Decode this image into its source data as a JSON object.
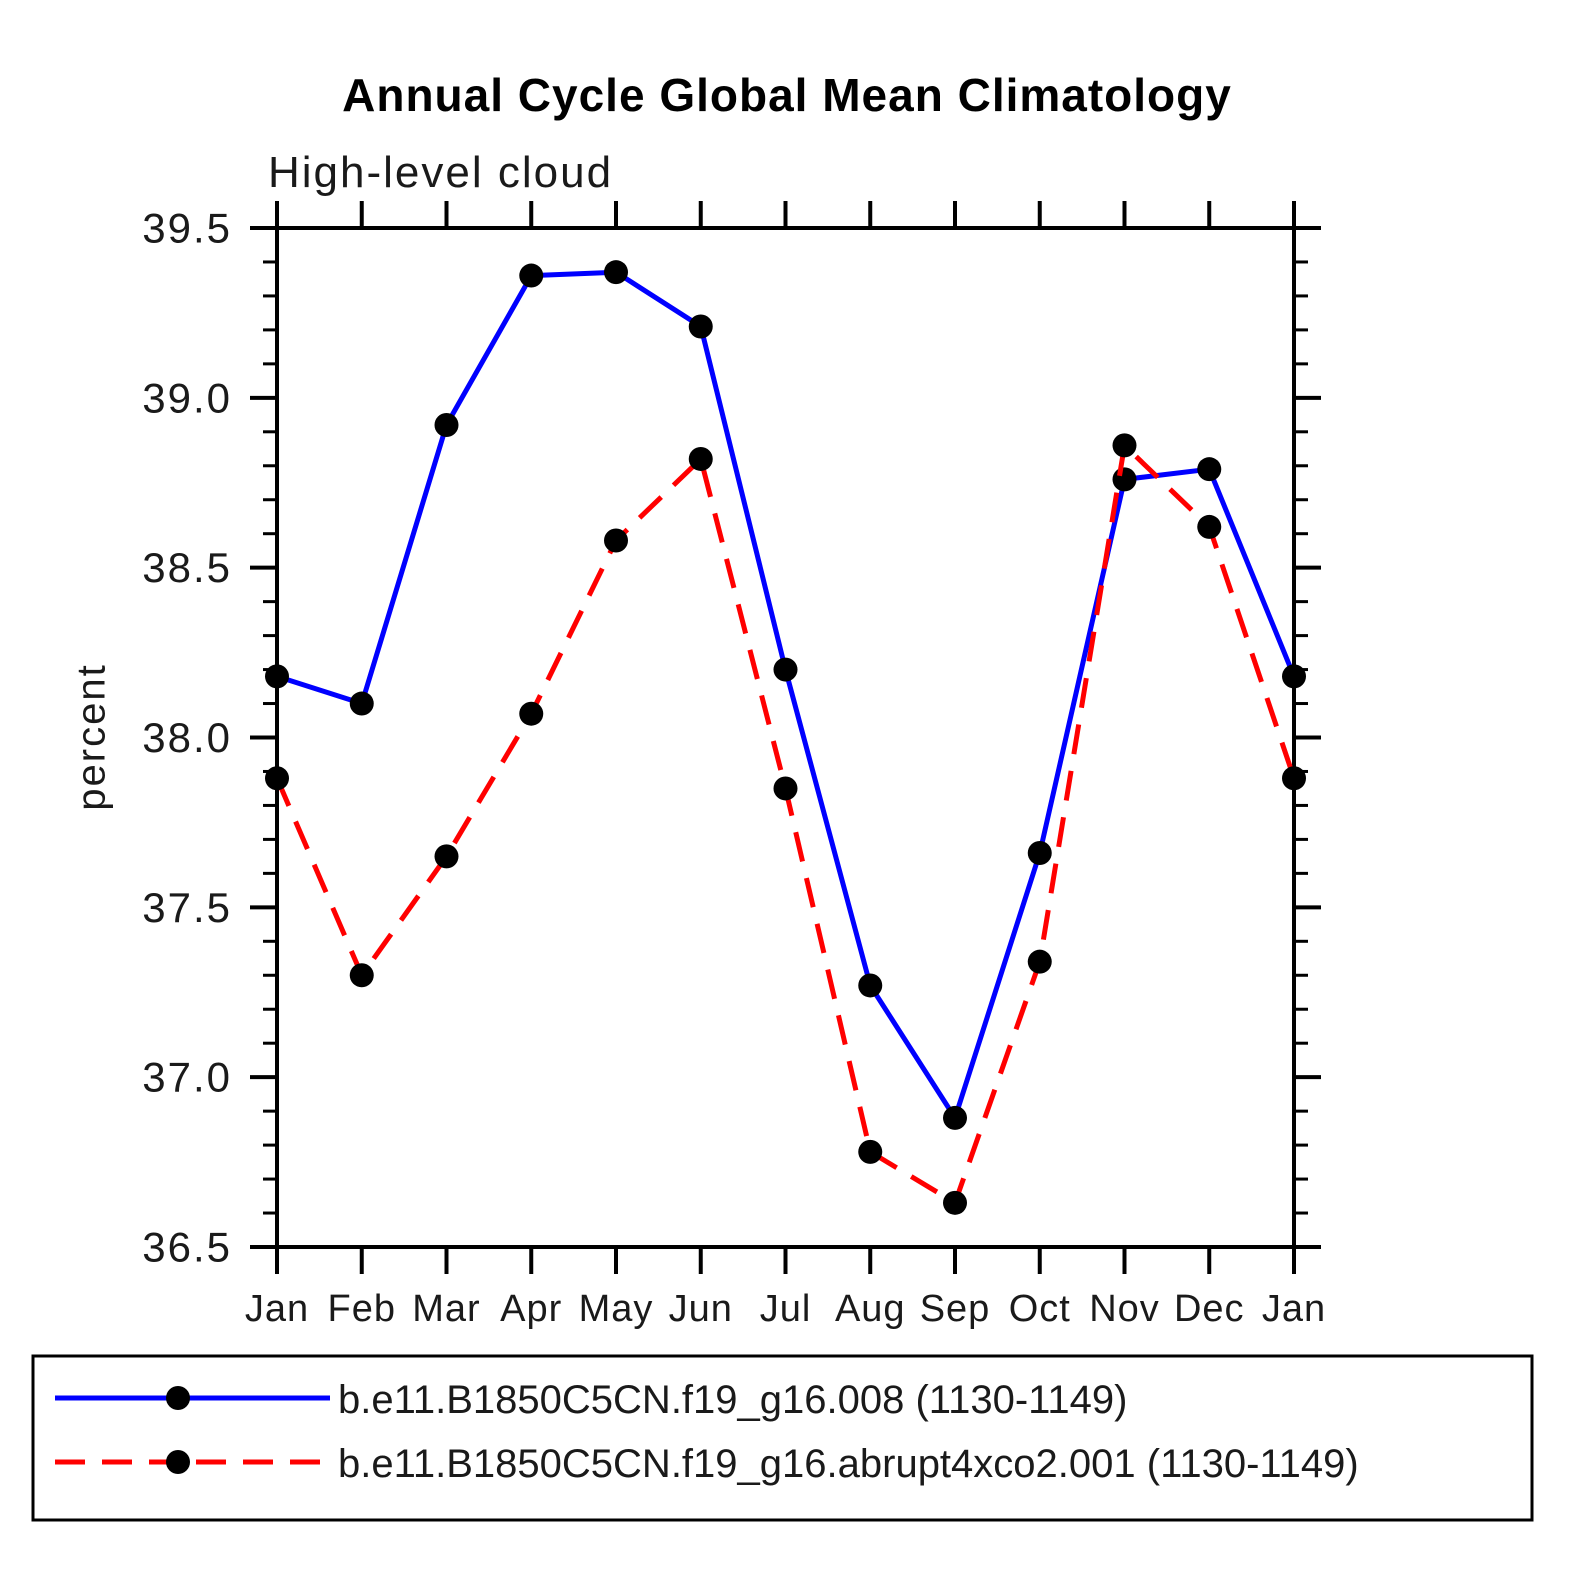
{
  "title": "Annual Cycle Global Mean Climatology",
  "subtitle": "High-level cloud",
  "y_axis_label": "percent",
  "colors": {
    "series1": "#0000ff",
    "series2": "#ff0000",
    "marker": "#000000",
    "axis": "#000000",
    "background": "#ffffff"
  },
  "chart_data": {
    "type": "line",
    "title": "Annual Cycle Global Mean Climatology",
    "subtitle": "High-level cloud",
    "xlabel": "",
    "ylabel": "percent",
    "categories": [
      "Jan",
      "Feb",
      "Mar",
      "Apr",
      "May",
      "Jun",
      "Jul",
      "Aug",
      "Sep",
      "Oct",
      "Nov",
      "Dec",
      "Jan"
    ],
    "ylim": [
      36.5,
      39.5
    ],
    "y_major_ticks": [
      39.5,
      39.0,
      38.5,
      38.0,
      37.5,
      37.0,
      36.5
    ],
    "y_minor_step": 0.1,
    "grid": false,
    "legend_position": "bottom-left-box",
    "series": [
      {
        "name": "b.e11.B1850C5CN.f19_g16.008 (1130-1149)",
        "color": "#0000ff",
        "line_style": "solid",
        "marker": "circle",
        "marker_color": "#000000",
        "values": [
          38.18,
          38.1,
          38.92,
          39.36,
          39.37,
          39.21,
          38.2,
          37.27,
          36.88,
          37.66,
          38.76,
          38.79,
          38.18
        ]
      },
      {
        "name": "b.e11.B1850C5CN.f19_g16.abrupt4xco2.001 (1130-1149)",
        "color": "#ff0000",
        "line_style": "dashed",
        "marker": "circle",
        "marker_color": "#000000",
        "values": [
          37.88,
          37.3,
          37.65,
          38.07,
          38.58,
          38.82,
          37.85,
          36.78,
          36.63,
          37.34,
          38.86,
          38.62,
          37.88
        ]
      }
    ]
  }
}
